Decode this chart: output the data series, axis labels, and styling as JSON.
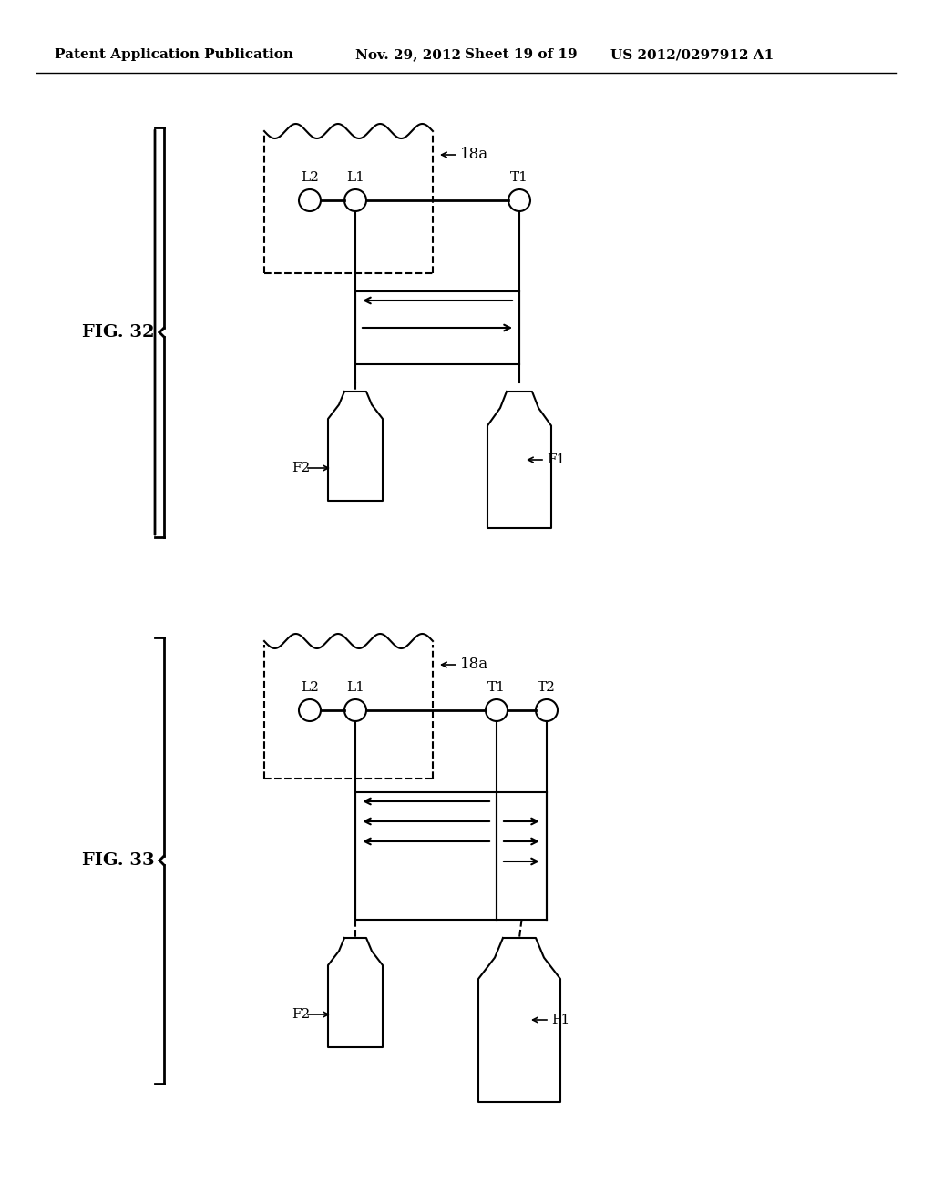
{
  "background_color": "#ffffff",
  "header_text": "Patent Application Publication",
  "header_date": "Nov. 29, 2012",
  "header_sheet": "Sheet 19 of 19",
  "header_patent": "US 2012/0297912 A1",
  "fig32_label": "FIG. 32",
  "fig33_label": "FIG. 33",
  "label_18a": "18a",
  "label_F1": "F1",
  "label_F2": "F2",
  "label_L1": "L1",
  "label_L2": "L2",
  "label_T1": "T1",
  "label_T2": "T2"
}
